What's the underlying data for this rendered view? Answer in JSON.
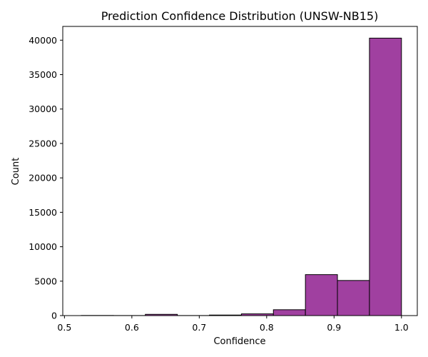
{
  "chart_data": {
    "type": "bar",
    "title": "Prediction Confidence Distribution (UNSW-NB15)",
    "xlabel": "Confidence",
    "ylabel": "Count",
    "xlim": [
      0.5,
      1.0
    ],
    "ylim": [
      0,
      42000
    ],
    "xticks": [
      0.5,
      0.6,
      0.7,
      0.8,
      0.9,
      1.0
    ],
    "xtick_labels": [
      "0.5",
      "0.6",
      "0.7",
      "0.8",
      "0.9",
      "1.0"
    ],
    "yticks": [
      0,
      5000,
      10000,
      15000,
      20000,
      25000,
      30000,
      35000,
      40000
    ],
    "ytick_labels": [
      "0",
      "5000",
      "10000",
      "15000",
      "20000",
      "25000",
      "30000",
      "35000",
      "40000"
    ],
    "bin_edges": [
      0.525,
      0.5725,
      0.62,
      0.6675,
      0.715,
      0.7625,
      0.81,
      0.8575,
      0.905,
      0.9525,
      1.0
    ],
    "values": [
      20,
      10,
      180,
      10,
      80,
      250,
      850,
      5950,
      5100,
      40300
    ],
    "grid": false,
    "legend": "none",
    "colors": {
      "bar_fill": "#a040a0",
      "bar_edge": "#000000"
    }
  }
}
